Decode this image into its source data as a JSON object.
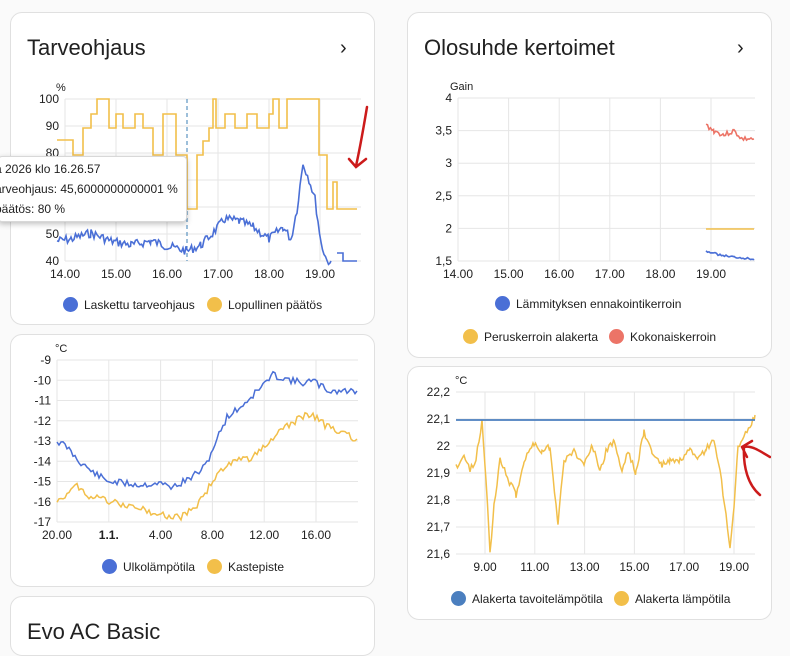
{
  "colors": {
    "blue": "#4a6fd6",
    "yellow": "#f2bf4a",
    "red": "#ec7467",
    "teal": "#4b7fbf",
    "annot": "#cc1b1b"
  },
  "tarveohjaus": {
    "title": "Tarveohjaus",
    "chevron": "›",
    "unit": "%",
    "chart_data": {
      "type": "line",
      "y_ticks": [
        "100",
        "90",
        "80",
        "70",
        "60",
        "50",
        "40"
      ],
      "x_ticks": [
        "14.00",
        "15.00",
        "16.00",
        "17.00",
        "18.00",
        "19.00"
      ],
      "ylim": [
        40,
        100
      ],
      "series": [
        {
          "name": "Laskettu tarveohjaus",
          "color": "#4a6fd6"
        },
        {
          "name": "Lopullinen päätös",
          "color": "#f2bf4a"
        }
      ]
    },
    "tooltip": {
      "line1": "a 2026 klo 16.26.57",
      "line2": "arveohjaus: 45,6000000000001 %",
      "line3": "päätös: 80 %"
    }
  },
  "olosuhde": {
    "title": "Olosuhde kertoimet",
    "chevron": "›",
    "unit": "Gain",
    "chart_data": {
      "type": "line",
      "y_ticks": [
        "4",
        "3,5",
        "3",
        "2,5",
        "2",
        "1,5"
      ],
      "x_ticks": [
        "14.00",
        "15.00",
        "16.00",
        "17.00",
        "18.00",
        "19.00"
      ],
      "ylim": [
        1.5,
        4
      ],
      "series": [
        {
          "name": "Lämmityksen ennakointikerroin",
          "color": "#4a6fd6"
        },
        {
          "name": "Peruskerroin alakerta",
          "color": "#f2bf4a"
        },
        {
          "name": "Kokonaiskerroin",
          "color": "#ec7467"
        }
      ]
    }
  },
  "temp1": {
    "unit": "°C",
    "chart_data": {
      "type": "line",
      "y_ticks": [
        "-9",
        "-10",
        "-11",
        "-12",
        "-13",
        "-14",
        "-15",
        "-16",
        "-17"
      ],
      "x_ticks": [
        "20.00",
        "1.1.",
        "4.00",
        "8.00",
        "12.00",
        "16.00"
      ],
      "ylim": [
        -17,
        -9
      ],
      "series": [
        {
          "name": "Ulkolämpötila",
          "color": "#4a6fd6"
        },
        {
          "name": "Kastepiste",
          "color": "#f2bf4a"
        }
      ]
    }
  },
  "temp2": {
    "unit": "°C",
    "chart_data": {
      "type": "line",
      "y_ticks": [
        "22,2",
        "22,1",
        "22",
        "21,9",
        "21,8",
        "21,7",
        "21,6"
      ],
      "x_ticks": [
        "9.00",
        "11.00",
        "13.00",
        "15.00",
        "17.00",
        "19.00"
      ],
      "ylim": [
        21.6,
        22.2
      ],
      "series": [
        {
          "name": "Alakerta tavoitelämpötila",
          "color": "#4b7fbf"
        },
        {
          "name": "Alakerta lämpötila",
          "color": "#f2bf4a"
        }
      ]
    }
  },
  "bottom_card": {
    "title": "Evo AC Basic"
  }
}
